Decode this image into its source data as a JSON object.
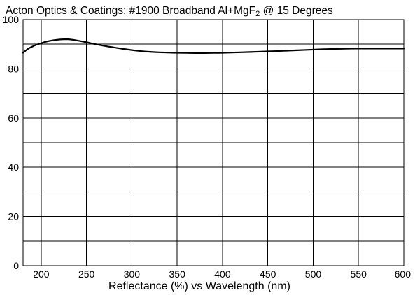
{
  "chart_data": {
    "type": "line",
    "title_main": "Acton Optics & Coatings: #1900 Broadband Al+MgF",
    "title_subscript": "2",
    "title_tail": " @ 15 Degrees",
    "xlabel": "Reflectance (%)  vs  Wavelength (nm)",
    "ylabel": "",
    "xlim": [
      180,
      600
    ],
    "ylim": [
      0,
      100
    ],
    "x_ticks": [
      200,
      250,
      300,
      350,
      400,
      450,
      500,
      550,
      600
    ],
    "x_tick_labels": [
      "200",
      "250",
      "300",
      "350",
      "400",
      "450",
      "500",
      "550",
      "600"
    ],
    "y_ticks": [
      0,
      20,
      40,
      60,
      80,
      100
    ],
    "y_tick_labels": [
      "0",
      "20",
      "40",
      "60",
      "80",
      "100"
    ],
    "y_gridlines": [
      10,
      20,
      30,
      40,
      50,
      60,
      70,
      80,
      90,
      100
    ],
    "x_gridlines": [
      200,
      250,
      300,
      350,
      400,
      450,
      500,
      550
    ],
    "grid": true,
    "series": [
      {
        "x": [
          180,
          185,
          190,
          195,
          200,
          205,
          210,
          215,
          220,
          225,
          230,
          235,
          240,
          250,
          260,
          270,
          280,
          290,
          300,
          310,
          320,
          330,
          340,
          350,
          360,
          370,
          380,
          390,
          400,
          420,
          440,
          460,
          480,
          500,
          520,
          540,
          560,
          580,
          600
        ],
        "y": [
          86.5,
          88.0,
          89.0,
          89.8,
          90.4,
          91.0,
          91.4,
          91.7,
          91.9,
          92.0,
          92.0,
          91.8,
          91.5,
          90.8,
          90.0,
          89.3,
          88.7,
          88.1,
          87.6,
          87.2,
          86.9,
          86.7,
          86.6,
          86.5,
          86.45,
          86.4,
          86.4,
          86.45,
          86.5,
          86.7,
          86.95,
          87.2,
          87.5,
          87.8,
          88.05,
          88.2,
          88.25,
          88.25,
          88.25
        ]
      }
    ]
  }
}
